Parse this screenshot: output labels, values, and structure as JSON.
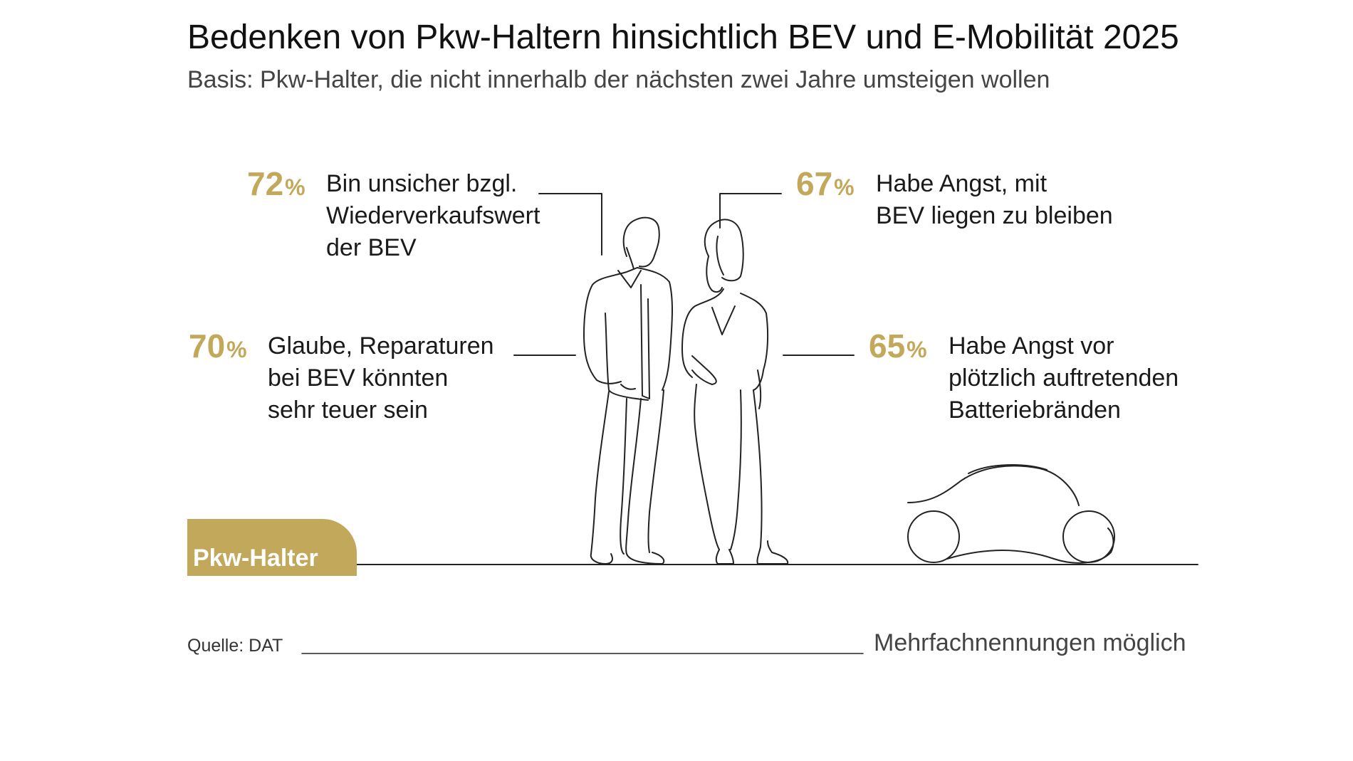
{
  "title": "Bedenken von Pkw-Haltern hinsichtlich BEV und E-Mobilität 2025",
  "subtitle": "Basis: Pkw-Halter, die nicht innerhalb der nächsten zwei Jahre umsteigen wollen",
  "badge_label": "Pkw-Halter",
  "source": "Quelle: DAT",
  "note": "Mehrfachnennungen möglich",
  "colors": {
    "accent": "#c2a85a",
    "text": "#1a1a1a",
    "line": "#222222"
  },
  "icons": [
    "man-illustration",
    "woman-illustration",
    "car-illustration"
  ],
  "chart_data": {
    "type": "infographic",
    "title": "Bedenken von Pkw-Haltern hinsichtlich BEV und E-Mobilität 2025",
    "subtitle": "Basis: Pkw-Halter, die nicht innerhalb der nächsten zwei Jahre umsteigen wollen",
    "unit": "%",
    "items": [
      {
        "value": 72,
        "label": "Bin unsicher bzgl.\nWiederverkaufswert\nder BEV"
      },
      {
        "value": 70,
        "label": "Glaube, Reparaturen\nbei BEV könnten\nsehr teuer sein"
      },
      {
        "value": 67,
        "label": "Habe Angst, mit\nBEV liegen zu bleiben"
      },
      {
        "value": 65,
        "label": "Habe Angst vor\nplötzlich auftretenden\nBatteriebränden"
      }
    ]
  }
}
